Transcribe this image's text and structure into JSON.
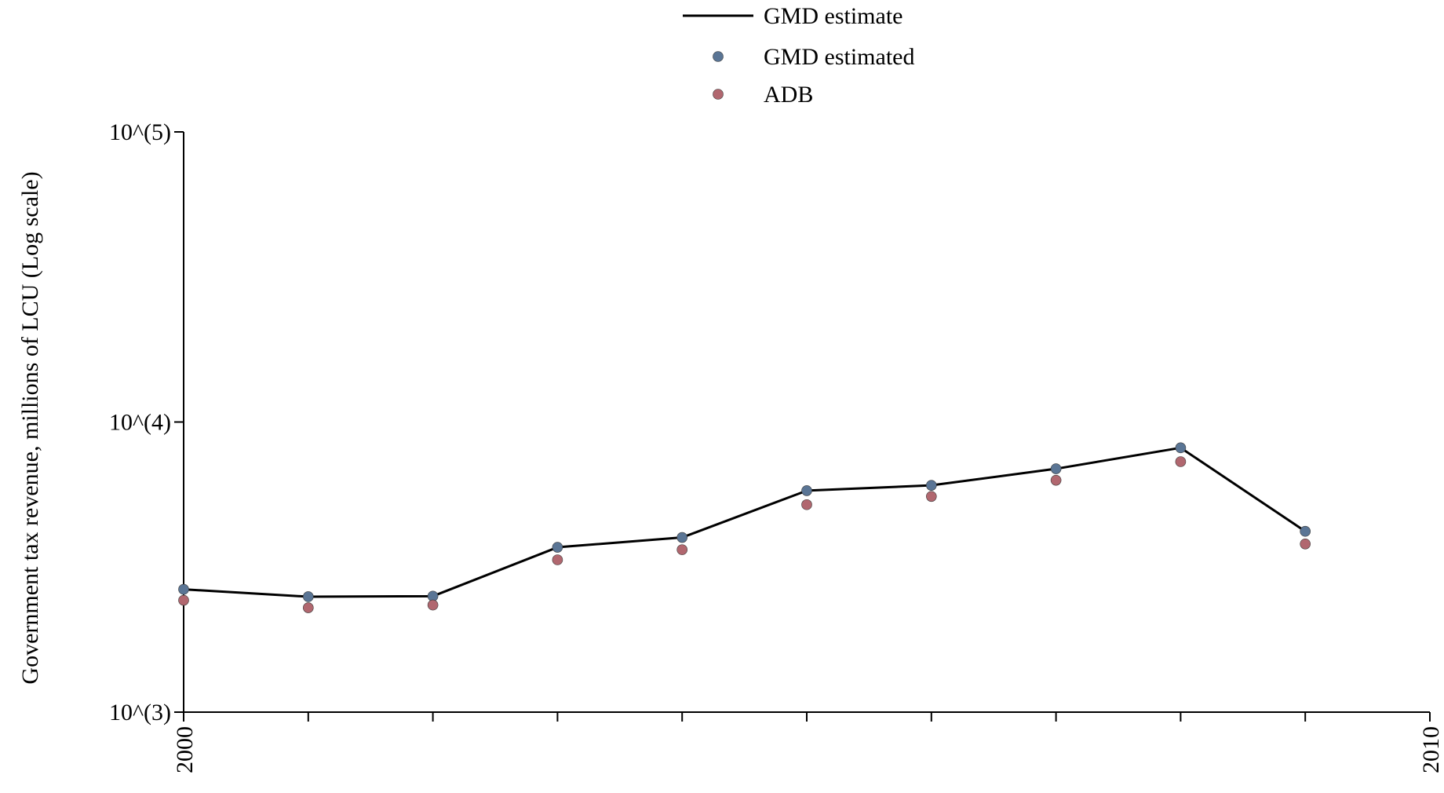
{
  "chart_data": {
    "type": "line",
    "title": "",
    "xlabel": "",
    "ylabel": "Government tax revenue, millions of LCU (Log scale)",
    "y_scale": "log",
    "xlim": [
      2000,
      2010
    ],
    "ylim": [
      1000,
      100000
    ],
    "x_ticks": [
      2000,
      2001,
      2002,
      2003,
      2004,
      2005,
      2006,
      2007,
      2008,
      2009,
      2010
    ],
    "x_tick_labels": [
      "2000",
      "2010"
    ],
    "y_ticks": [
      1000,
      10000,
      100000
    ],
    "y_tick_labels": [
      "10^(3)",
      "10^(4)",
      "10^(5)"
    ],
    "grid": false,
    "legend_position": "top-center",
    "x": [
      2000,
      2001,
      2002,
      2003,
      2004,
      2005,
      2006,
      2007,
      2008,
      2009
    ],
    "series": [
      {
        "name": "GMD estimate",
        "kind": "line",
        "color": "#000000",
        "values": [
          2650,
          2500,
          2510,
          3700,
          4000,
          5800,
          6050,
          6900,
          8150,
          4200
        ]
      },
      {
        "name": "GMD estimated",
        "kind": "scatter",
        "color": "#5a7595",
        "values": [
          2650,
          2500,
          2510,
          3700,
          4000,
          5800,
          6050,
          6900,
          8150,
          4200
        ]
      },
      {
        "name": "ADB",
        "kind": "scatter",
        "color": "#b1676f",
        "values": [
          2430,
          2290,
          2340,
          3350,
          3630,
          5190,
          5540,
          6300,
          7300,
          3800
        ]
      }
    ]
  }
}
